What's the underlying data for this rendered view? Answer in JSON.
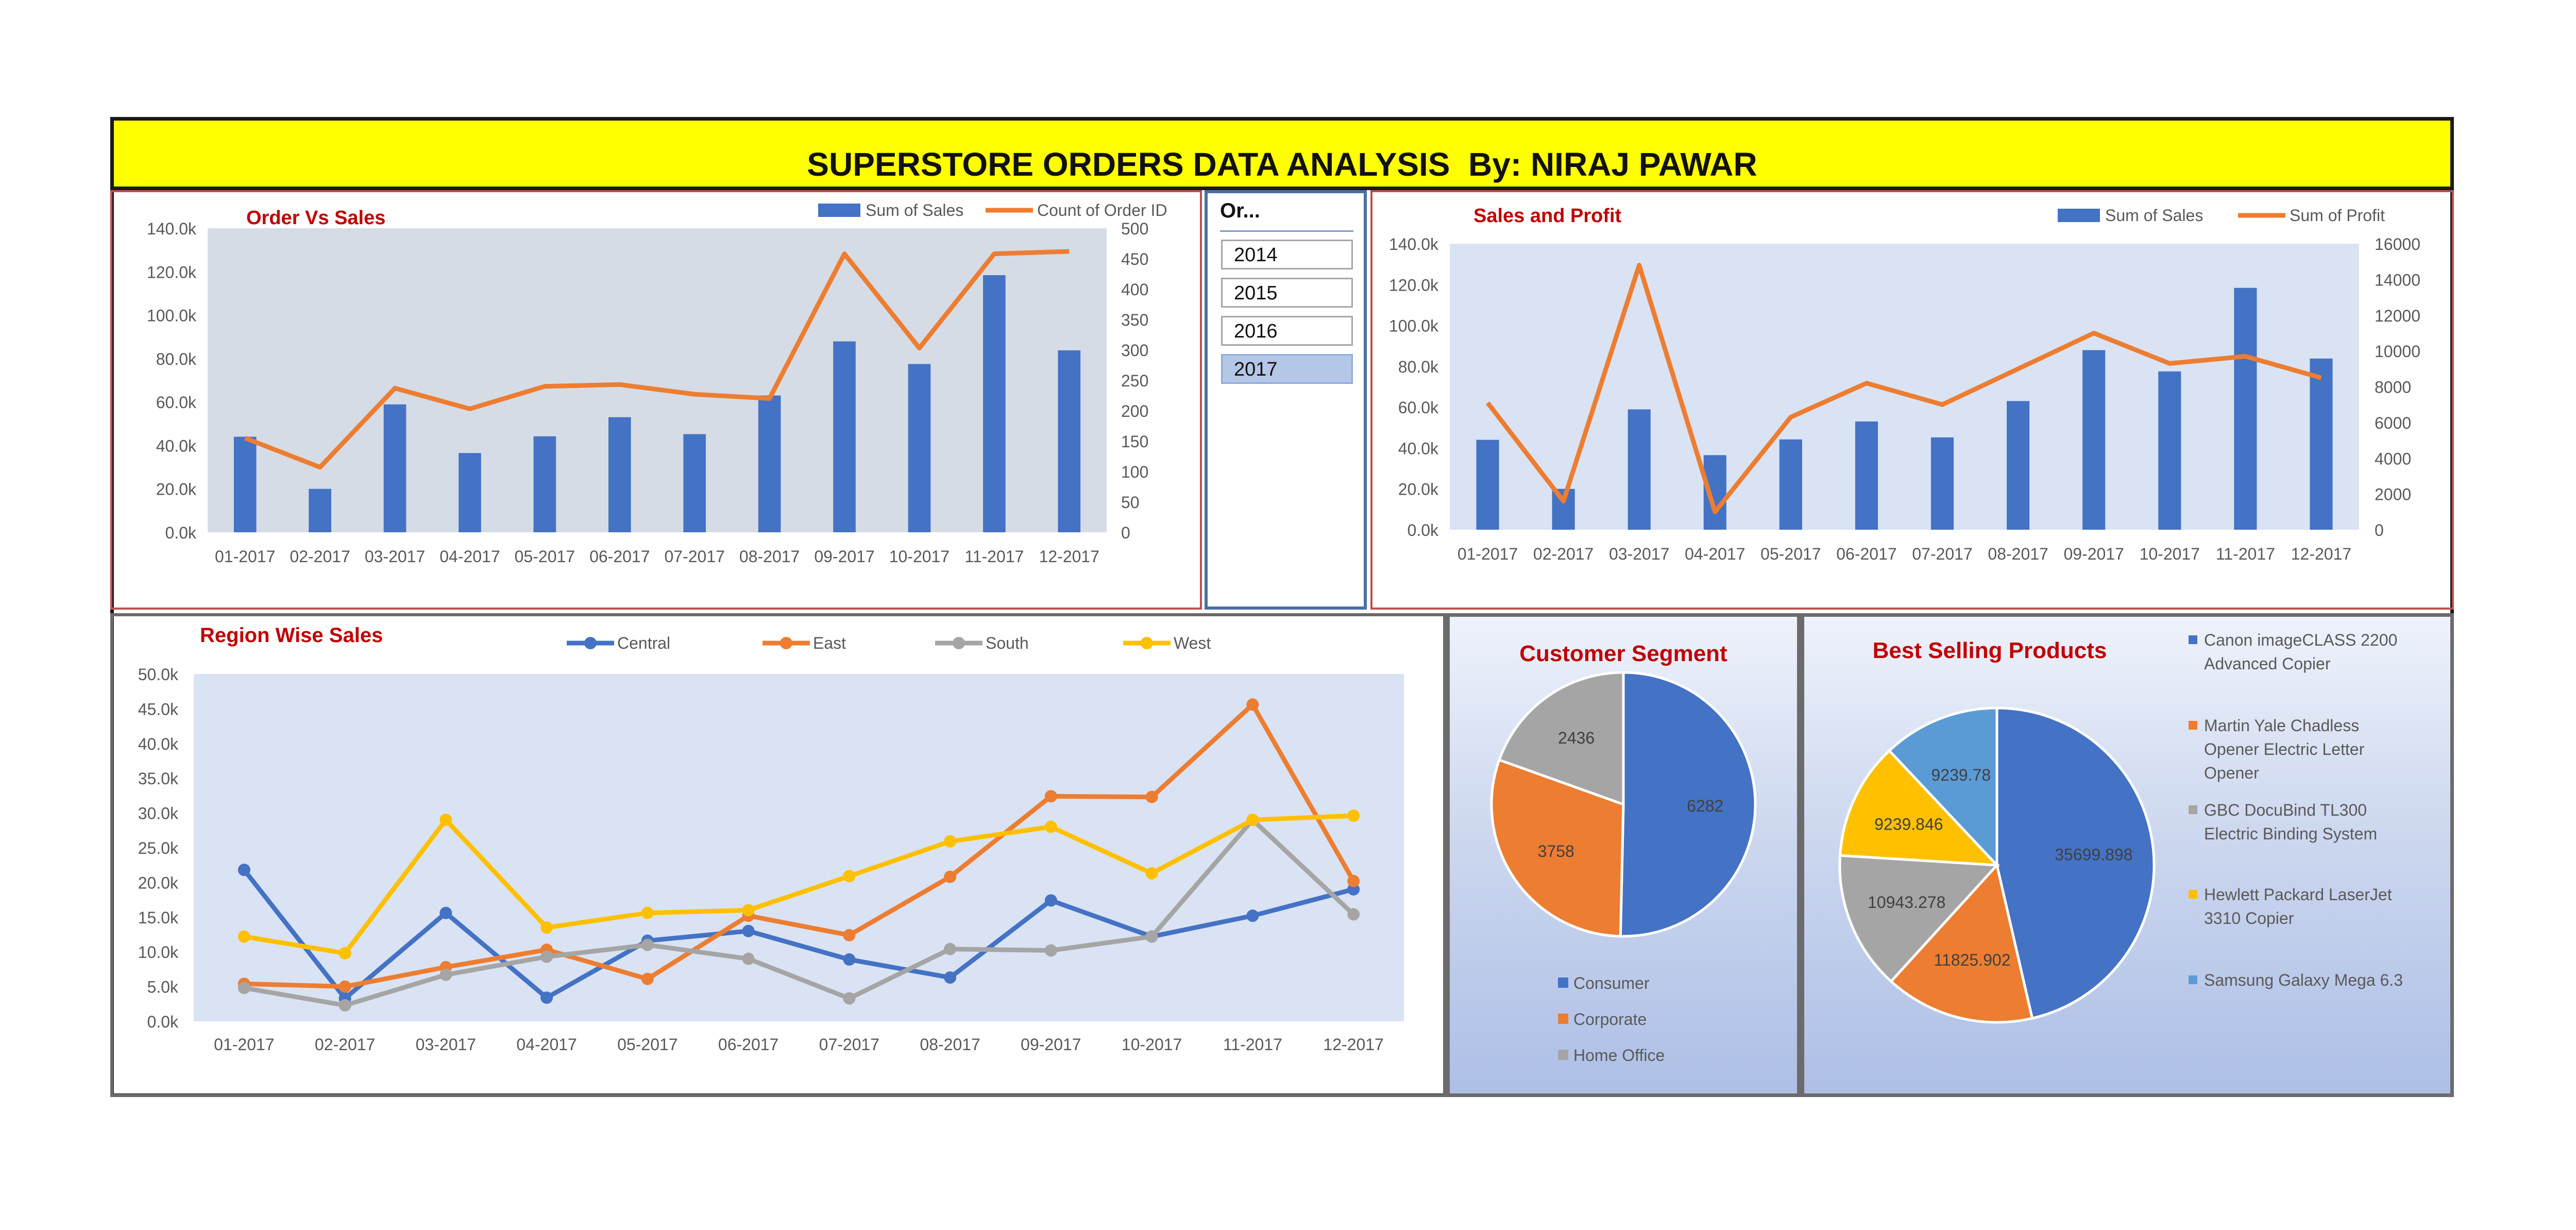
{
  "header": {
    "title": "SUPERSTORE ORDERS DATA ANALYSIS  By: NIRAJ PAWAR"
  },
  "slicer": {
    "title": "Or...",
    "items": [
      "2014",
      "2015",
      "2016",
      "2017"
    ],
    "selected": "2017"
  },
  "colors": {
    "blue": "#4472c4",
    "orange": "#ed7d31",
    "gray": "#a5a5a5",
    "yellow": "#ffc000",
    "lightblue": "#5b9bd5",
    "title_red": "#c00000",
    "plot_bg": "#d6dce5"
  },
  "chart_data": [
    {
      "id": "order-vs-sales",
      "type": "bar",
      "title": "Order Vs Sales",
      "categories": [
        "01-2017",
        "02-2017",
        "03-2017",
        "04-2017",
        "05-2017",
        "06-2017",
        "07-2017",
        "08-2017",
        "09-2017",
        "10-2017",
        "11-2017",
        "12-2017"
      ],
      "series": [
        {
          "name": "Sum of Sales",
          "type": "bar",
          "axis": "left",
          "values": [
            44000,
            20000,
            58900,
            36500,
            44200,
            53000,
            45200,
            63000,
            87900,
            77500,
            118400,
            83800
          ]
        },
        {
          "name": "Count of Order ID",
          "type": "line",
          "axis": "right",
          "values": [
            155,
            107,
            237,
            203,
            240,
            243,
            227,
            220,
            458,
            303,
            458,
            462
          ]
        }
      ],
      "y_left": {
        "ylim": [
          0,
          140000
        ],
        "ticks": [
          "0.0k",
          "20.0k",
          "40.0k",
          "60.0k",
          "80.0k",
          "100.0k",
          "120.0k",
          "140.0k"
        ]
      },
      "y_right": {
        "ylim": [
          0,
          500
        ],
        "ticks": [
          "0",
          "50",
          "100",
          "150",
          "200",
          "250",
          "300",
          "350",
          "400",
          "450",
          "500"
        ]
      },
      "legend": "top-right"
    },
    {
      "id": "sales-and-profit",
      "type": "bar",
      "title": "Sales and Profit",
      "categories": [
        "01-2017",
        "02-2017",
        "03-2017",
        "04-2017",
        "05-2017",
        "06-2017",
        "07-2017",
        "08-2017",
        "09-2017",
        "10-2017",
        "11-2017",
        "12-2017"
      ],
      "series": [
        {
          "name": "Sum of Sales",
          "type": "bar",
          "axis": "left",
          "values": [
            44000,
            20000,
            58900,
            36500,
            44200,
            53000,
            45200,
            63000,
            87900,
            77500,
            118400,
            83800
          ]
        },
        {
          "name": "Sum of Profit",
          "type": "line",
          "axis": "right",
          "values": [
            7100,
            1600,
            14800,
            1000,
            6300,
            8200,
            7000,
            9000,
            11000,
            9300,
            9700,
            8500
          ]
        }
      ],
      "y_left": {
        "ylim": [
          0,
          140000
        ],
        "ticks": [
          "0.0k",
          "20.0k",
          "40.0k",
          "60.0k",
          "80.0k",
          "100.0k",
          "120.0k",
          "140.0k"
        ]
      },
      "y_right": {
        "ylim": [
          0,
          16000
        ],
        "ticks": [
          "0",
          "2000",
          "4000",
          "6000",
          "8000",
          "10000",
          "12000",
          "14000",
          "16000"
        ]
      },
      "legend": "top-right"
    },
    {
      "id": "region-wise-sales",
      "type": "line",
      "title": "Region Wise Sales",
      "categories": [
        "01-2017",
        "02-2017",
        "03-2017",
        "04-2017",
        "05-2017",
        "06-2017",
        "07-2017",
        "08-2017",
        "09-2017",
        "10-2017",
        "11-2017",
        "12-2017"
      ],
      "series": [
        {
          "name": "Central",
          "values": [
            21800,
            3300,
            15600,
            3400,
            11600,
            13000,
            8900,
            6300,
            17400,
            12200,
            15200,
            19000
          ]
        },
        {
          "name": "East",
          "values": [
            5400,
            5000,
            7800,
            10300,
            6100,
            15200,
            12400,
            20800,
            32400,
            32300,
            45600,
            20200
          ]
        },
        {
          "name": "South",
          "values": [
            4800,
            2300,
            6700,
            9300,
            11000,
            9000,
            3300,
            10400,
            10200,
            12200,
            29000,
            15400
          ]
        },
        {
          "name": "West",
          "values": [
            12200,
            9800,
            29000,
            13500,
            15600,
            16000,
            20900,
            25900,
            28000,
            21300,
            29000,
            29600
          ]
        }
      ],
      "ylim": [
        0,
        50000
      ],
      "ticks": [
        "0.0k",
        "5.0k",
        "10.0k",
        "15.0k",
        "20.0k",
        "25.0k",
        "30.0k",
        "35.0k",
        "40.0k",
        "45.0k",
        "50.0k"
      ],
      "legend": "top"
    },
    {
      "id": "customer-segment",
      "type": "pie",
      "title": "Customer Segment",
      "labels": [
        "Consumer",
        "Corporate",
        "Home Office"
      ],
      "values": [
        6282,
        3758,
        2436
      ],
      "value_labels": [
        "6282",
        "3758",
        "2436"
      ],
      "legend": "bottom"
    },
    {
      "id": "best-selling-products",
      "type": "pie",
      "title": "Best Selling Products",
      "labels": [
        "Canon imageCLASS 2200 Advanced Copier",
        "Martin Yale Chadless Opener Electric Letter Opener",
        "GBC DocuBind TL300 Electric Binding System",
        "Hewlett Packard LaserJet 3310 Copier",
        "Samsung Galaxy Mega 6.3"
      ],
      "legend_lines": [
        [
          "Canon imageCLASS 2200",
          "Advanced Copier"
        ],
        [
          "Martin Yale Chadless",
          "Opener Electric Letter",
          "Opener"
        ],
        [
          "GBC DocuBind TL300",
          "Electric Binding System"
        ],
        [
          "Hewlett Packard LaserJet",
          "3310 Copier"
        ],
        [
          "Samsung Galaxy Mega 6.3"
        ]
      ],
      "values": [
        35699.898,
        11825.902,
        10943.278,
        9239.846,
        9239.78
      ],
      "value_labels": [
        "35699.898",
        "11825.902",
        "10943.278",
        "9239.846",
        "9239.78"
      ],
      "legend": "right"
    }
  ]
}
